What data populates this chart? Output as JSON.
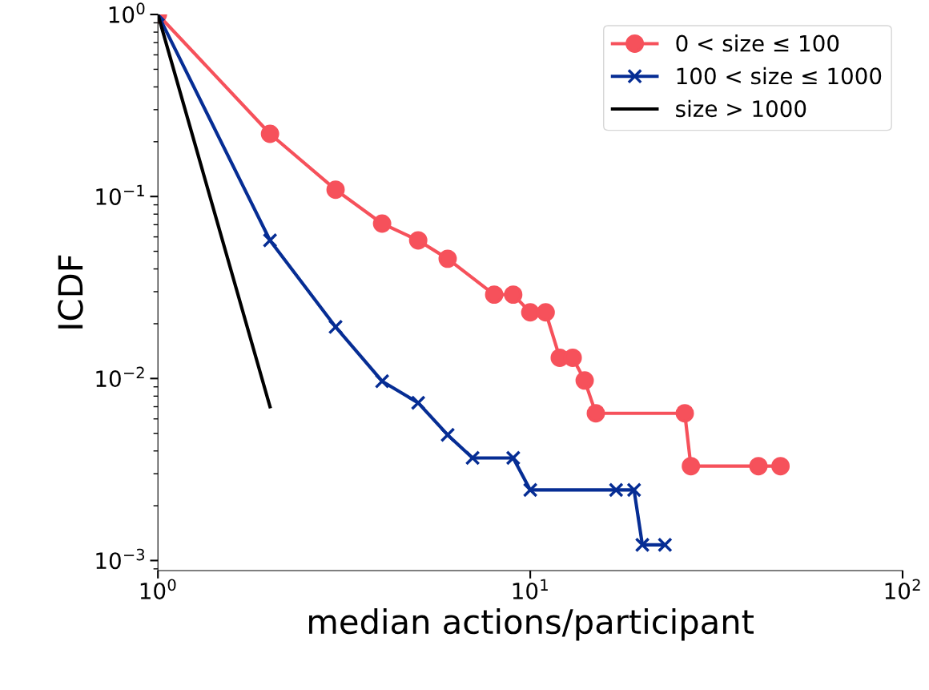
{
  "chart_data": {
    "type": "line",
    "xlabel": "median actions/participant",
    "ylabel": "ICDF",
    "log": "xy",
    "xlim": [
      1,
      100
    ],
    "ylim": [
      0.00088,
      1
    ],
    "xticks": [
      {
        "value": 1,
        "label": "10$^{0}$"
      },
      {
        "value": 10,
        "label": "10$^{1}$"
      },
      {
        "value": 100,
        "label": "10$^{2}$"
      }
    ],
    "yticks": [
      {
        "value": 1,
        "label": "10$^{0}$"
      },
      {
        "value": 0.1,
        "label": "10$^{−1}$"
      },
      {
        "value": 0.01,
        "label": "10$^{−2}$"
      },
      {
        "value": 0.001,
        "label": "10$^{−3}$"
      }
    ],
    "grid": false,
    "legend": "top right",
    "series": [
      {
        "name": "0 < size ≤ 100",
        "color": "#f6515b",
        "marker": "circle",
        "x": [
          1,
          2,
          3,
          4,
          5,
          6,
          8,
          9,
          10,
          11,
          12,
          13,
          14,
          15,
          26,
          27,
          41,
          47
        ],
        "values": [
          1,
          0.221,
          0.109,
          0.071,
          0.0574,
          0.0455,
          0.0289,
          0.0289,
          0.0231,
          0.0231,
          0.013,
          0.013,
          0.00975,
          0.00644,
          0.00644,
          0.0033,
          0.0033,
          0.0033
        ]
      },
      {
        "name": "100 < size ≤ 1000",
        "color": "#062d94",
        "marker": "cross",
        "x": [
          1,
          2,
          3,
          4,
          5,
          6,
          7,
          9,
          10,
          17,
          19,
          20,
          23
        ],
        "values": [
          1,
          0.0574,
          0.0192,
          0.00966,
          0.00735,
          0.0049,
          0.00366,
          0.00366,
          0.00244,
          0.00244,
          0.00244,
          0.00122,
          0.00122
        ]
      },
      {
        "name": "size > 1000",
        "color": "#000000",
        "marker": "none",
        "x": [
          1,
          2
        ],
        "values": [
          1,
          0.007
        ]
      }
    ]
  }
}
